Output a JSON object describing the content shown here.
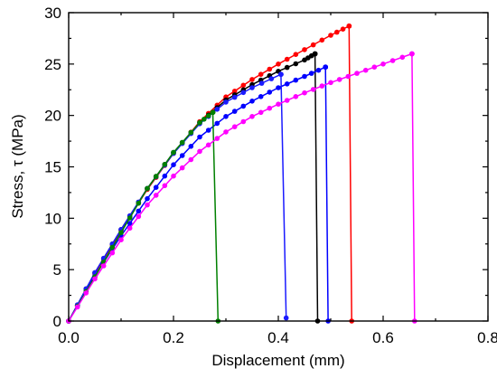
{
  "chart_data": {
    "type": "line",
    "title": "",
    "xlabel": "Displacement (mm)",
    "ylabel": "Stress, τ (MPa)",
    "xlim": [
      0,
      0.8
    ],
    "ylim": [
      0,
      30
    ],
    "xticks": [
      "0.0",
      "0.2",
      "0.4",
      "0.6",
      "0.8"
    ],
    "yticks": [
      "0",
      "5",
      "10",
      "15",
      "20",
      "25",
      "30"
    ],
    "grid": false,
    "legend": "none",
    "series": [
      {
        "color": "#ff0000",
        "x": [
          0,
          0.05,
          0.1,
          0.15,
          0.2,
          0.25,
          0.3,
          0.35,
          0.4,
          0.45,
          0.5,
          0.535,
          0.535,
          0.54
        ],
        "y": [
          0,
          4.6,
          8.8,
          12.8,
          16.3,
          19.4,
          21.8,
          23.5,
          25.0,
          26.4,
          27.8,
          28.7,
          28.7,
          0
        ]
      },
      {
        "color": "#000000",
        "x": [
          0,
          0.05,
          0.1,
          0.15,
          0.2,
          0.25,
          0.3,
          0.35,
          0.4,
          0.45,
          0.47,
          0.47,
          0.475
        ],
        "y": [
          0,
          4.7,
          8.9,
          12.9,
          16.4,
          19.3,
          21.5,
          23.0,
          24.3,
          25.4,
          26.0,
          26.0,
          0
        ]
      },
      {
        "color": "#0000ff",
        "x": [
          0,
          0.05,
          0.1,
          0.15,
          0.2,
          0.25,
          0.3,
          0.35,
          0.4,
          0.45,
          0.49,
          0.49,
          0.495
        ],
        "y": [
          0,
          4.4,
          8.3,
          11.9,
          15.2,
          17.9,
          19.9,
          21.4,
          22.7,
          23.8,
          24.7,
          24.7,
          0
        ]
      },
      {
        "color": "#1a1aff",
        "x": [
          0,
          0.05,
          0.1,
          0.15,
          0.2,
          0.25,
          0.3,
          0.35,
          0.405,
          0.405,
          0.415
        ],
        "y": [
          0,
          4.7,
          8.9,
          12.9,
          16.3,
          19.2,
          21.3,
          22.7,
          24.0,
          24.0,
          0.3
        ]
      },
      {
        "color": "#008000",
        "x": [
          0,
          0.05,
          0.1,
          0.15,
          0.2,
          0.25,
          0.275,
          0.275,
          0.285
        ],
        "y": [
          0,
          4.3,
          8.6,
          12.9,
          16.4,
          19.3,
          20.3,
          20.3,
          0
        ]
      },
      {
        "color": "#ff00ff",
        "x": [
          0,
          0.05,
          0.1,
          0.15,
          0.2,
          0.25,
          0.3,
          0.35,
          0.4,
          0.45,
          0.5,
          0.55,
          0.6,
          0.655,
          0.655,
          0.66
        ],
        "y": [
          0,
          4.1,
          7.9,
          11.3,
          14.1,
          16.5,
          18.4,
          19.9,
          21.1,
          22.2,
          23.2,
          24.1,
          25.0,
          26.0,
          26.0,
          0
        ]
      }
    ]
  }
}
